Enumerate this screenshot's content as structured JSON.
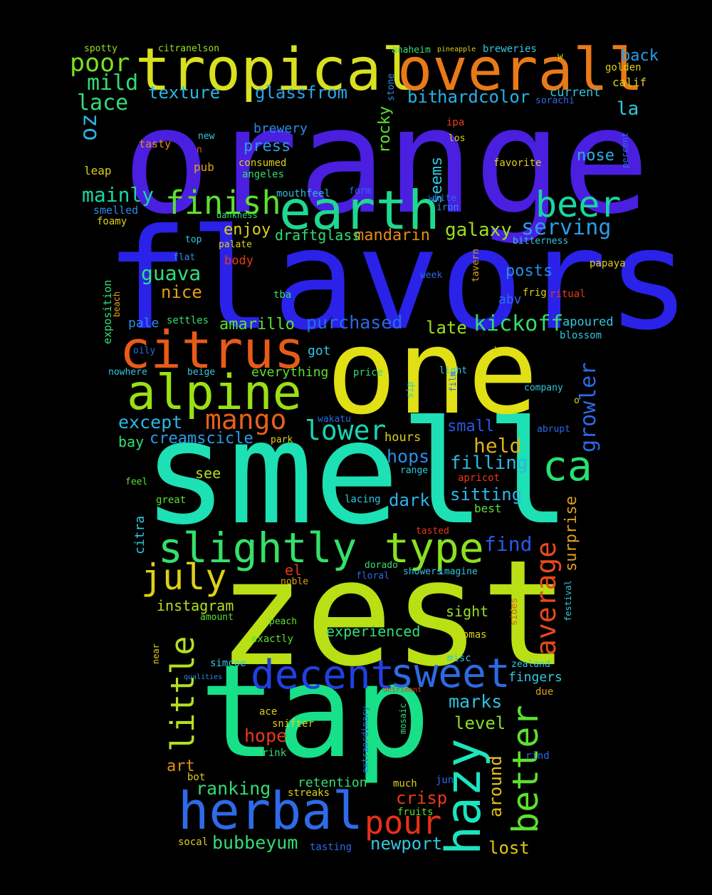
{
  "words": [
    {
      "text": "orange",
      "color": "#4a1fe0"
    },
    {
      "text": "flavors",
      "color": "#2a22e8"
    },
    {
      "text": "smell",
      "color": "#1de0b4"
    },
    {
      "text": "zest",
      "color": "#b8e014"
    },
    {
      "text": "one",
      "color": "#e0e014"
    },
    {
      "text": "tap",
      "color": "#18e088"
    },
    {
      "text": "tropical",
      "color": "#d8e020"
    },
    {
      "text": "overall",
      "color": "#e87a18"
    },
    {
      "text": "earth",
      "color": "#1ed890"
    },
    {
      "text": "citrus",
      "color": "#e85a18"
    },
    {
      "text": "alpine",
      "color": "#9ae014"
    },
    {
      "text": "herbal",
      "color": "#2f6ae8"
    },
    {
      "text": "hazy",
      "color": "#1ce4c0"
    },
    {
      "text": "slightly",
      "color": "#34e06a"
    },
    {
      "text": "type",
      "color": "#8ae020"
    },
    {
      "text": "decent",
      "color": "#2040e0"
    },
    {
      "text": "sweet",
      "color": "#2d6ae4"
    },
    {
      "text": "beer",
      "color": "#18d6a4"
    },
    {
      "text": "finish",
      "color": "#5ce030"
    },
    {
      "text": "better",
      "color": "#5ce030"
    },
    {
      "text": "little",
      "color": "#b4e020"
    },
    {
      "text": "july",
      "color": "#dcd018"
    },
    {
      "text": "ca",
      "color": "#28e070"
    },
    {
      "text": "mango",
      "color": "#e86018"
    },
    {
      "text": "lower",
      "color": "#18d4b4"
    },
    {
      "text": "pour",
      "color": "#e83018"
    },
    {
      "text": "average",
      "color": "#e84a18"
    },
    {
      "text": "poor",
      "color": "#7ae020"
    },
    {
      "text": "mild",
      "color": "#34dc74"
    },
    {
      "text": "lace",
      "color": "#34dc7a"
    },
    {
      "text": "oz",
      "color": "#2ab4e4"
    },
    {
      "text": "texture",
      "color": "#2ab8e0"
    },
    {
      "text": "glassfrom",
      "color": "#2aa4e8"
    },
    {
      "text": "mainly",
      "color": "#18d8a0"
    },
    {
      "text": "serving",
      "color": "#2a9ce8"
    },
    {
      "text": "growler",
      "color": "#2a6ae8"
    },
    {
      "text": "kickoff",
      "color": "#34dc6a"
    },
    {
      "text": "guava",
      "color": "#30e07a"
    },
    {
      "text": "galaxy",
      "color": "#9ae020"
    },
    {
      "text": "held",
      "color": "#e0b018"
    },
    {
      "text": "filling",
      "color": "#2ab8e0"
    },
    {
      "text": "sitting",
      "color": "#30b8e8"
    },
    {
      "text": "ranking",
      "color": "#34dc74"
    },
    {
      "text": "bubbeyum",
      "color": "#34dc74"
    },
    {
      "text": "hops",
      "color": "#2a8ce8"
    },
    {
      "text": "hope",
      "color": "#e83a18"
    },
    {
      "text": "crisp",
      "color": "#e83a18"
    },
    {
      "text": "find",
      "color": "#2a58e8"
    },
    {
      "text": "marks",
      "color": "#30c0e0"
    },
    {
      "text": "level",
      "color": "#8ae020"
    },
    {
      "text": "around",
      "color": "#e0c018"
    },
    {
      "text": "surprise",
      "color": "#e0a018"
    },
    {
      "text": "newport",
      "color": "#30c8e0"
    },
    {
      "text": "lost",
      "color": "#e0c818"
    },
    {
      "text": "dark",
      "color": "#30b0e8"
    },
    {
      "text": "experienced",
      "color": "#30e07a"
    },
    {
      "text": "purchased",
      "color": "#2a6ae8"
    },
    {
      "text": "amarillo",
      "color": "#5ce030"
    },
    {
      "text": "late",
      "color": "#9ae020"
    },
    {
      "text": "except",
      "color": "#2ab8e4"
    },
    {
      "text": "creamscicle",
      "color": "#2a9ce8"
    },
    {
      "text": "posts",
      "color": "#2a8ce8"
    },
    {
      "text": "mandarin",
      "color": "#e88a18"
    },
    {
      "text": "enjoy",
      "color": "#dcd018"
    },
    {
      "text": "draftglass",
      "color": "#34dc74"
    },
    {
      "text": "nose",
      "color": "#2ab0e8"
    },
    {
      "text": "seems",
      "color": "#30c8e0"
    },
    {
      "text": "rocky",
      "color": "#5ce030"
    },
    {
      "text": "brewery",
      "color": "#2a8ce8"
    },
    {
      "text": "press",
      "color": "#2a9ce8"
    },
    {
      "text": "color",
      "color": "#2ab0e8"
    },
    {
      "text": "hard",
      "color": "#2ab0e8"
    },
    {
      "text": "bit",
      "color": "#2ab0e8"
    },
    {
      "text": "nice",
      "color": "#e0a018"
    },
    {
      "text": "small",
      "color": "#2a58e8"
    },
    {
      "text": "back",
      "color": "#2a9ce8"
    },
    {
      "text": "la",
      "color": "#30c8e0"
    },
    {
      "text": "abv",
      "color": "#2a6ae8"
    },
    {
      "text": "instagram",
      "color": "#b4e020"
    },
    {
      "text": "sight",
      "color": "#9ae020"
    },
    {
      "text": "el",
      "color": "#e83a18"
    },
    {
      "text": "see",
      "color": "#b4e020"
    },
    {
      "text": "art",
      "color": "#e09018"
    },
    {
      "text": "fingers",
      "color": "#30c8e0"
    },
    {
      "text": "citra",
      "color": "#30c8e0"
    },
    {
      "text": "retention",
      "color": "#34dc74"
    },
    {
      "text": "current",
      "color": "#30c8e0"
    },
    {
      "text": "calif",
      "color": "#dcd018"
    },
    {
      "text": "golden",
      "color": "#dcd018"
    },
    {
      "text": "apoured",
      "color": "#30c8e0"
    },
    {
      "text": "body",
      "color": "#e83a18"
    },
    {
      "text": "pale",
      "color": "#2a8ce8"
    },
    {
      "text": "got",
      "color": "#30c8e0"
    },
    {
      "text": "everything",
      "color": "#5ce030"
    },
    {
      "text": "bay",
      "color": "#30e070"
    },
    {
      "text": "breweries",
      "color": "#30c8e0"
    },
    {
      "text": "anaheim",
      "color": "#34dc74"
    },
    {
      "text": "pineapple",
      "color": "#dcd018"
    },
    {
      "text": "spotty",
      "color": "#9ae020"
    },
    {
      "text": "citranelson",
      "color": "#9ae020"
    },
    {
      "text": "stone",
      "color": "#2a8ce8"
    },
    {
      "text": "w",
      "color": "#dcd018"
    },
    {
      "text": "sorachi",
      "color": "#2a6ae8"
    },
    {
      "text": "percent",
      "color": "#2a6ae8"
    },
    {
      "text": "ipa",
      "color": "#e83a18"
    },
    {
      "text": "los",
      "color": "#dcd018"
    },
    {
      "text": "favorite",
      "color": "#dcd018"
    },
    {
      "text": "tasty",
      "color": "#e09018"
    },
    {
      "text": "new",
      "color": "#30c8e0"
    },
    {
      "text": "n",
      "color": "#e85a18"
    },
    {
      "text": "pub",
      "color": "#e0a018"
    },
    {
      "text": "consumed",
      "color": "#dcd018"
    },
    {
      "text": "angeles",
      "color": "#34dc74"
    },
    {
      "text": "leap",
      "color": "#dcd018"
    },
    {
      "text": "mouthfeel",
      "color": "#30b8e0"
    },
    {
      "text": "form",
      "color": "#2a6ae8"
    },
    {
      "text": "white",
      "color": "#2a6ae8"
    },
    {
      "text": "iron",
      "color": "#2a8ce8"
    },
    {
      "text": "smelled",
      "color": "#2a8ce8"
    },
    {
      "text": "foamy",
      "color": "#dcd018"
    },
    {
      "text": "dankness",
      "color": "#34dc74"
    },
    {
      "text": "top",
      "color": "#30c8e0"
    },
    {
      "text": "palate",
      "color": "#dcd018"
    },
    {
      "text": "flat",
      "color": "#2a8ce8"
    },
    {
      "text": "bitterness",
      "color": "#30c8e0"
    },
    {
      "text": "papaya",
      "color": "#dcd018"
    },
    {
      "text": "tavern",
      "color": "#e0a018"
    },
    {
      "text": "week",
      "color": "#2a6ae8"
    },
    {
      "text": "exposition",
      "color": "#30e07a"
    },
    {
      "text": "beach",
      "color": "#e0a018"
    },
    {
      "text": "tba",
      "color": "#34dc74"
    },
    {
      "text": "frig",
      "color": "#dcd018"
    },
    {
      "text": "ritual",
      "color": "#e83a18"
    },
    {
      "text": "settles",
      "color": "#34dc74"
    },
    {
      "text": "blossom",
      "color": "#30c8e0"
    },
    {
      "text": "oily",
      "color": "#2a6ae8"
    },
    {
      "text": "b",
      "color": "#dcd018"
    },
    {
      "text": "nowhere",
      "color": "#30c8e0"
    },
    {
      "text": "beige",
      "color": "#30c8e0"
    },
    {
      "text": "price",
      "color": "#34dc74"
    },
    {
      "text": "sip",
      "color": "#30c8e0"
    },
    {
      "text": "light",
      "color": "#30c8e0"
    },
    {
      "text": "film",
      "color": "#2a6ae8"
    },
    {
      "text": "company",
      "color": "#30c8e0"
    },
    {
      "text": "o",
      "color": "#dcd018"
    },
    {
      "text": "wakatu",
      "color": "#2a6ae8"
    },
    {
      "text": "abrupt",
      "color": "#2a6ae8"
    },
    {
      "text": "park",
      "color": "#dcd018"
    },
    {
      "text": "hours",
      "color": "#dcd018"
    },
    {
      "text": "range",
      "color": "#30c8e0"
    },
    {
      "text": "apricot",
      "color": "#e83a18"
    },
    {
      "text": "feel",
      "color": "#5ce030"
    },
    {
      "text": "great",
      "color": "#5ce030"
    },
    {
      "text": "lacing",
      "color": "#30c8e0"
    },
    {
      "text": "best",
      "color": "#5ce030"
    },
    {
      "text": "tasted",
      "color": "#e83a18"
    },
    {
      "text": "dorado",
      "color": "#34dc74"
    },
    {
      "text": "showers",
      "color": "#30c8e0"
    },
    {
      "text": "imagine",
      "color": "#30c8e0"
    },
    {
      "text": "floral",
      "color": "#2a6ae8"
    },
    {
      "text": "noble",
      "color": "#e0a018"
    },
    {
      "text": "festival",
      "color": "#30c8e0"
    },
    {
      "text": "amount",
      "color": "#5ce030"
    },
    {
      "text": "peach",
      "color": "#5ce030"
    },
    {
      "text": "exactly",
      "color": "#5ce030"
    },
    {
      "text": "aromas",
      "color": "#dcd018"
    },
    {
      "text": "sides",
      "color": "#e85a18"
    },
    {
      "text": "near",
      "color": "#dcd018"
    },
    {
      "text": "simcoe",
      "color": "#30c8e0"
    },
    {
      "text": "misc",
      "color": "#30c8e0"
    },
    {
      "text": "qualities",
      "color": "#2a8ce8"
    },
    {
      "text": "zealand",
      "color": "#30c8e0"
    },
    {
      "text": "detriment",
      "color": "#e83a18"
    },
    {
      "text": "extraordinary",
      "color": "#2a6ae8"
    },
    {
      "text": "due",
      "color": "#e0a018"
    },
    {
      "text": "ace",
      "color": "#dcd018"
    },
    {
      "text": "snifter",
      "color": "#dcd018"
    },
    {
      "text": "mosaic",
      "color": "#34dc74"
    },
    {
      "text": "drink",
      "color": "#34dc74"
    },
    {
      "text": "rind",
      "color": "#2a6ae8"
    },
    {
      "text": "bot",
      "color": "#dcd018"
    },
    {
      "text": "much",
      "color": "#dcd018"
    },
    {
      "text": "jun",
      "color": "#2a6ae8"
    },
    {
      "text": "streaks",
      "color": "#dcd018"
    },
    {
      "text": "fruits",
      "color": "#5ce030"
    },
    {
      "text": "socal",
      "color": "#dcd018"
    },
    {
      "text": "tasting",
      "color": "#2a6ae8"
    }
  ]
}
